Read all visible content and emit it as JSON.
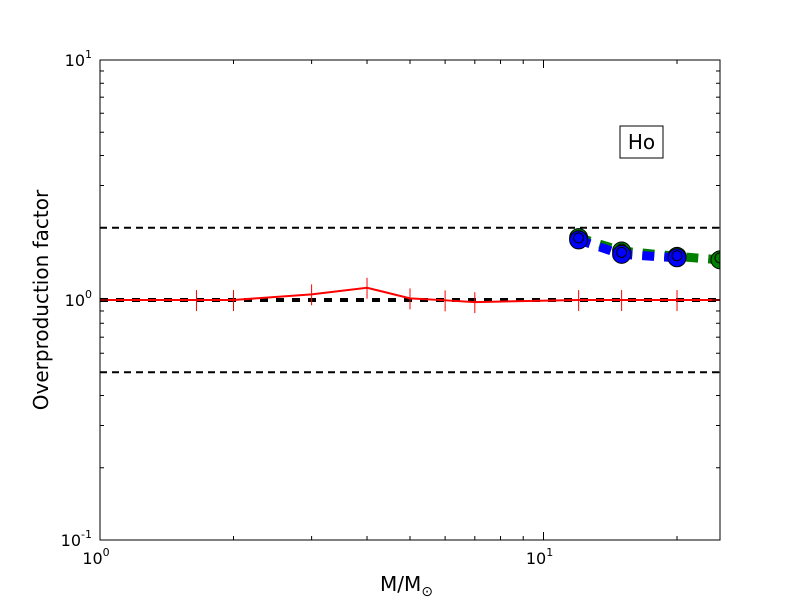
{
  "chart_data": {
    "type": "line",
    "title": "",
    "xlabel": "M/M",
    "xlabel_subscript": "⊙",
    "ylabel": "Overproduction factor",
    "xscale": "log",
    "yscale": "log",
    "xlim": [
      1,
      25
    ],
    "ylim": [
      0.1,
      10
    ],
    "x_tick_labels": [
      {
        "base": "10",
        "exp": "0"
      },
      {
        "base": "10",
        "exp": "1"
      }
    ],
    "y_tick_labels": [
      {
        "base": "10",
        "exp": "-1"
      },
      {
        "base": "10",
        "exp": "0"
      },
      {
        "base": "10",
        "exp": "1"
      }
    ],
    "annotation": "Ho",
    "grid": false,
    "reference_lines": [
      {
        "y": 2.0,
        "style": "dashed",
        "color": "#000000"
      },
      {
        "y": 1.0,
        "style": "thick-dotted",
        "color": "#000000"
      },
      {
        "y": 0.5,
        "style": "dashed",
        "color": "#000000"
      }
    ],
    "series": [
      {
        "style": "solid-with-errorbars",
        "color": "#ff0000",
        "x": [
          1.0,
          1.65,
          2,
          3,
          4,
          5,
          6,
          7,
          12,
          15,
          20,
          25
        ],
        "y": [
          1.0,
          1.0,
          1.0,
          1.056,
          1.125,
          1.016,
          0.997,
          0.98,
          1.0,
          1.0,
          1.0,
          1.0
        ],
        "yerr_frac": [
          0,
          0.1,
          0.1,
          0.1,
          0.1,
          0.1,
          0.1,
          0.1,
          0.1,
          0.1,
          0.1,
          0
        ]
      },
      {
        "style": "thick-dashed-circles",
        "color": "#008000",
        "x": [
          12,
          15,
          20,
          25
        ],
        "y": [
          1.82,
          1.6,
          1.52,
          1.47
        ]
      },
      {
        "style": "thick-dashed-circles",
        "color": "#0000ff",
        "x": [
          12,
          15,
          20
        ],
        "y": [
          1.78,
          1.55,
          1.5
        ]
      }
    ]
  }
}
